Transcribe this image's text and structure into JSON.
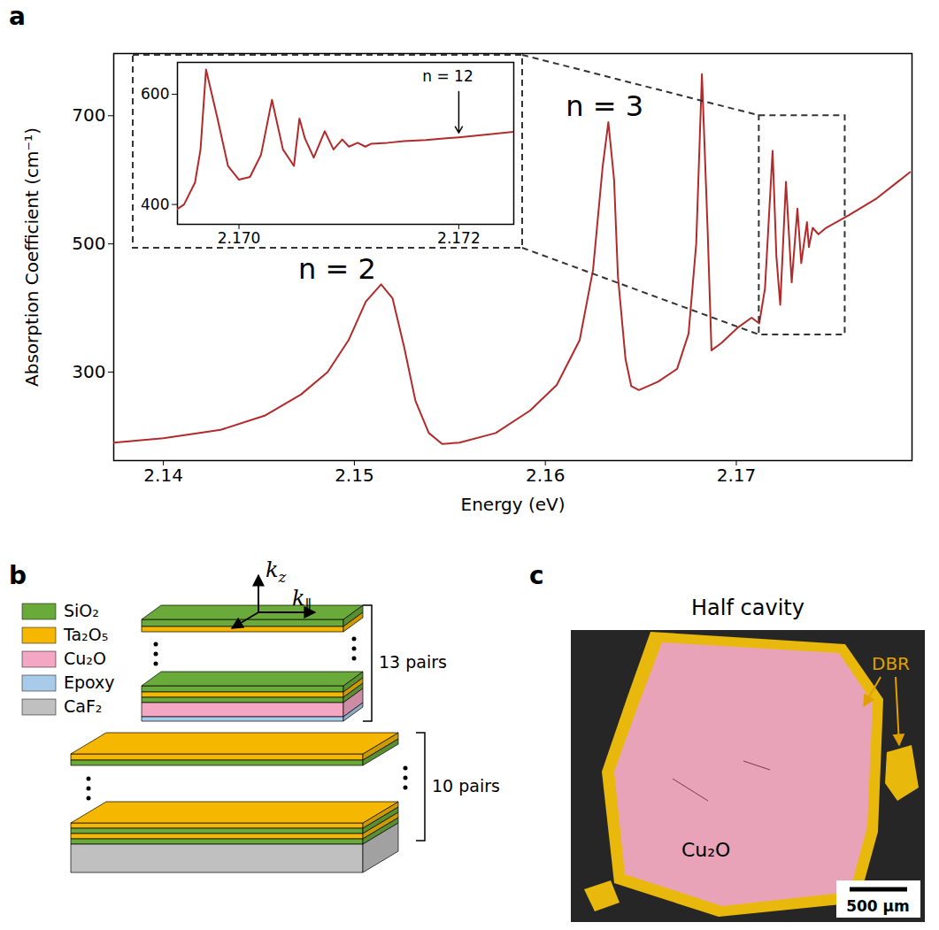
{
  "chart_data": [
    {
      "type": "line",
      "xlabel": "Energy (eV)",
      "ylabel": "Absorption Coefficient (cm⁻¹)",
      "color": "#b22a2a",
      "x": [
        2.1374,
        2.14,
        2.143,
        2.1453,
        2.1472,
        2.1486,
        2.1497,
        2.1506,
        2.1514,
        2.152,
        2.1526,
        2.1532,
        2.1539,
        2.1546,
        2.1555,
        2.1574,
        2.1592,
        2.1606,
        2.1618,
        2.1625,
        2.163,
        2.1633,
        2.1636,
        2.1638,
        2.1642,
        2.1645,
        2.1649,
        2.1659,
        2.1669,
        2.1675,
        2.1679,
        2.1682,
        2.1685,
        2.1687,
        2.1692,
        2.1701,
        2.1708,
        2.1712,
        2.1715,
        2.1719,
        2.1721,
        2.1723,
        2.1726,
        2.1729,
        2.1732,
        2.1734,
        2.1737,
        2.1738,
        2.174,
        2.1743,
        2.1747,
        2.1759,
        2.1773,
        2.1791
      ],
      "values": [
        190,
        197,
        210,
        232,
        265,
        300,
        350,
        410,
        437,
        415,
        340,
        255,
        205,
        188,
        190,
        205,
        240,
        280,
        350,
        460,
        620,
        690,
        600,
        450,
        320,
        278,
        272,
        285,
        305,
        360,
        500,
        765,
        520,
        334,
        345,
        370,
        385,
        376,
        430,
        645,
        480,
        405,
        597,
        440,
        555,
        470,
        534,
        495,
        525,
        515,
        525,
        545,
        570,
        612
      ],
      "xlim": [
        2.1374,
        2.1792
      ],
      "ylim": [
        162,
        797
      ],
      "xticks": [
        2.14,
        2.15,
        2.16,
        2.17
      ],
      "yticks": [
        300,
        500,
        700
      ],
      "annotations": [
        {
          "text": "n = 2",
          "x": 2.1491,
          "y": 460
        },
        {
          "text": "n = 3",
          "x": 2.1631,
          "y": 714
        }
      ],
      "zoom_box": {
        "x": [
          2.1712,
          2.1757
        ],
        "y": [
          358,
          700
        ]
      }
    },
    {
      "type": "line",
      "color": "#b22a2a",
      "x": [
        2.16944,
        2.1695,
        2.1696,
        2.16965,
        2.1697,
        2.1698,
        2.1699,
        2.17,
        2.1701,
        2.1702,
        2.1703,
        2.1704,
        2.1705,
        2.17055,
        2.1706,
        2.17068,
        2.17078,
        2.17086,
        2.17094,
        2.171,
        2.17108,
        2.17115,
        2.1712,
        2.17135,
        2.1715,
        2.1717,
        2.172,
        2.1722,
        2.1725
      ],
      "values": [
        392,
        400,
        440,
        500,
        645,
        560,
        470,
        445,
        450,
        490,
        590,
        500,
        470,
        556,
        520,
        485,
        533,
        500,
        518,
        505,
        512,
        505,
        510,
        512,
        515,
        517,
        522,
        526,
        532
      ],
      "xlim": [
        2.16944,
        2.1725
      ],
      "ylim": [
        364,
        658
      ],
      "xticks": [
        {
          "value": 2.17,
          "label": "2.170"
        },
        {
          "value": 2.172,
          "label": "2.172"
        }
      ],
      "yticks": [
        400,
        600
      ],
      "annotations": [
        {
          "text": "n = 12",
          "x": 2.1719,
          "y": 632,
          "arrow": {
            "x1": 2.172,
            "y1": 605,
            "x2": 2.172,
            "y2": 530
          }
        }
      ]
    }
  ],
  "panel_labels": [
    "a",
    "b",
    "c"
  ],
  "panel_b": {
    "legend": [
      {
        "label": "SiO₂",
        "color": "#6aaa3a"
      },
      {
        "label": "Ta₂O₅",
        "color": "#f5b700"
      },
      {
        "label": "Cu₂O",
        "color": "#f4a7c3"
      },
      {
        "label": "Epoxy",
        "color": "#a9cbea"
      },
      {
        "label": "CaF₂",
        "color": "#c0c0c0"
      }
    ],
    "brackets": [
      "13 pairs",
      "10 pairs"
    ],
    "axes": [
      {
        "base": "k",
        "sub": "z"
      },
      {
        "base": "k",
        "sub": "∥"
      }
    ]
  },
  "panel_c": {
    "title": "Half cavity",
    "annotations": {
      "dbr": "DBR",
      "material": "Cu₂O",
      "scale_bar": "500 μm"
    }
  }
}
